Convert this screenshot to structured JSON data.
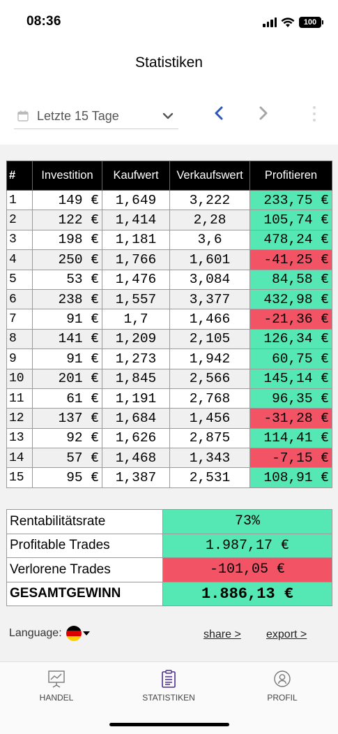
{
  "status": {
    "time": "08:36",
    "battery": "100"
  },
  "page_title": "Statistiken",
  "filter": {
    "label": "Letzte 15 Tage"
  },
  "colors": {
    "profit": "#55e8b4",
    "loss": "#f25465",
    "header_bg": "#000000"
  },
  "icons": [
    "calendar-icon",
    "chevron-down-icon",
    "chevron-left-icon",
    "chevron-right-icon",
    "more-vertical-icon",
    "chart-icon",
    "clipboard-icon",
    "user-icon",
    "german-flag-icon"
  ],
  "trades": {
    "headers": [
      "#",
      "Investition",
      "Kaufwert",
      "Verkaufswert",
      "Profitieren"
    ],
    "rows": [
      {
        "n": "1",
        "inv": "149 €",
        "kauf": "1,649",
        "verk": "3,222",
        "profit": "233,75 €",
        "positive": true
      },
      {
        "n": "2",
        "inv": "122 €",
        "kauf": "1,414",
        "verk": "2,28",
        "profit": "105,74 €",
        "positive": true
      },
      {
        "n": "3",
        "inv": "198 €",
        "kauf": "1,181",
        "verk": "3,6",
        "profit": "478,24 €",
        "positive": true
      },
      {
        "n": "4",
        "inv": "250 €",
        "kauf": "1,766",
        "verk": "1,601",
        "profit": "-41,25 €",
        "positive": false
      },
      {
        "n": "5",
        "inv": "53 €",
        "kauf": "1,476",
        "verk": "3,084",
        "profit": "84,58 €",
        "positive": true
      },
      {
        "n": "6",
        "inv": "238 €",
        "kauf": "1,557",
        "verk": "3,377",
        "profit": "432,98 €",
        "positive": true
      },
      {
        "n": "7",
        "inv": "91 €",
        "kauf": "1,7",
        "verk": "1,466",
        "profit": "-21,36 €",
        "positive": false
      },
      {
        "n": "8",
        "inv": "141 €",
        "kauf": "1,209",
        "verk": "2,105",
        "profit": "126,34 €",
        "positive": true
      },
      {
        "n": "9",
        "inv": "91 €",
        "kauf": "1,273",
        "verk": "1,942",
        "profit": "60,75 €",
        "positive": true
      },
      {
        "n": "10",
        "inv": "201 €",
        "kauf": "1,845",
        "verk": "2,566",
        "profit": "145,14 €",
        "positive": true
      },
      {
        "n": "11",
        "inv": "61 €",
        "kauf": "1,191",
        "verk": "2,768",
        "profit": "96,35 €",
        "positive": true
      },
      {
        "n": "12",
        "inv": "137 €",
        "kauf": "1,684",
        "verk": "1,456",
        "profit": "-31,28 €",
        "positive": false
      },
      {
        "n": "13",
        "inv": "92 €",
        "kauf": "1,626",
        "verk": "2,875",
        "profit": "114,41 €",
        "positive": true
      },
      {
        "n": "14",
        "inv": "57 €",
        "kauf": "1,468",
        "verk": "1,343",
        "profit": "-7,15 €",
        "positive": false
      },
      {
        "n": "15",
        "inv": "95 €",
        "kauf": "1,387",
        "verk": "2,531",
        "profit": "108,91 €",
        "positive": true
      }
    ]
  },
  "summary": {
    "rentabilitaet_label": "Rentabilitätsrate",
    "rentabilitaet_value": "73%",
    "profitable_label": "Profitable Trades",
    "profitable_value": "1.987,17 €",
    "verlorene_label": "Verlorene Trades",
    "verlorene_value": "-101,05 €",
    "gesamt_label": "GESAMTGEWINN",
    "gesamt_value": "1.886,13 €"
  },
  "footer": {
    "language_label": "Language:",
    "share": "share >",
    "export": "export >"
  },
  "tabs": {
    "handel": "HANDEL",
    "statistiken": "STATISTIKEN",
    "profil": "PROFIL"
  }
}
